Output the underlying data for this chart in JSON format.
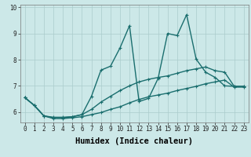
{
  "xlabel": "Humidex (Indice chaleur)",
  "bg_color": "#cce8e8",
  "grid_color": "#aacccc",
  "line_color": "#1a6e6e",
  "xlim": [
    -0.5,
    23.5
  ],
  "ylim": [
    5.6,
    10.1
  ],
  "xticks": [
    0,
    1,
    2,
    3,
    4,
    5,
    6,
    7,
    8,
    9,
    10,
    11,
    12,
    13,
    14,
    15,
    16,
    17,
    18,
    19,
    20,
    21,
    22,
    23
  ],
  "yticks": [
    6,
    7,
    8,
    9,
    10
  ],
  "line1_x": [
    0,
    1,
    2,
    3,
    4,
    5,
    6,
    7,
    8,
    9,
    10,
    11,
    12,
    13,
    14,
    15,
    16,
    17,
    18,
    19,
    20,
    21,
    22,
    23
  ],
  "line1_y": [
    6.55,
    6.25,
    5.85,
    5.75,
    5.75,
    5.78,
    5.82,
    5.9,
    5.98,
    6.1,
    6.2,
    6.35,
    6.48,
    6.58,
    6.65,
    6.72,
    6.82,
    6.9,
    6.98,
    7.08,
    7.15,
    7.22,
    6.95,
    6.95
  ],
  "line2_x": [
    0,
    1,
    2,
    3,
    4,
    5,
    6,
    7,
    8,
    9,
    10,
    11,
    12,
    13,
    14,
    15,
    16,
    17,
    18,
    19,
    20,
    21,
    22,
    23
  ],
  "line2_y": [
    6.55,
    6.25,
    5.85,
    5.8,
    5.8,
    5.82,
    5.9,
    6.1,
    6.38,
    6.6,
    6.82,
    7.0,
    7.15,
    7.25,
    7.32,
    7.38,
    7.48,
    7.58,
    7.65,
    7.72,
    7.58,
    7.52,
    6.98,
    6.98
  ],
  "line3_x": [
    0,
    1,
    2,
    3,
    4,
    5,
    6,
    7,
    8,
    9,
    10,
    11,
    12,
    13,
    14,
    15,
    16,
    17,
    18,
    19,
    20,
    21,
    22,
    23
  ],
  "line3_y": [
    6.55,
    6.25,
    5.85,
    5.78,
    5.78,
    5.82,
    5.9,
    6.6,
    7.6,
    7.75,
    8.45,
    9.3,
    6.4,
    6.52,
    7.28,
    9.0,
    8.92,
    9.72,
    8.02,
    7.52,
    7.32,
    7.0,
    6.98,
    6.98
  ],
  "marker_size": 3.0,
  "line_width": 1.0,
  "tick_fontsize": 5.5,
  "label_fontsize": 7.5
}
